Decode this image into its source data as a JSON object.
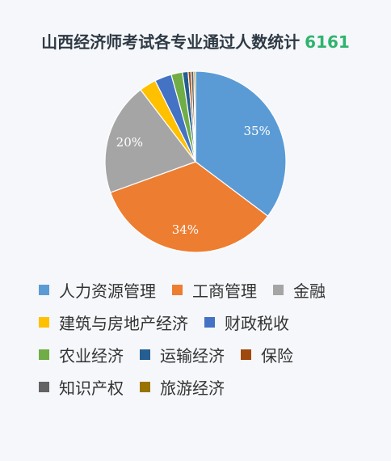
{
  "header": {
    "title": "山西经济师考试各专业通过人数统计",
    "total": "6161"
  },
  "chart_data": {
    "type": "pie",
    "title": "山西经济师考试各专业通过人数统计",
    "categories": [
      "人力资源管理",
      "工商管理",
      "金融",
      "建筑与房地产经济",
      "财政税收",
      "农业经济",
      "运输经济",
      "保险",
      "知识产权",
      "旅游经济"
    ],
    "values": [
      35,
      34,
      20,
      3,
      3,
      2,
      1,
      0.5,
      0.5,
      0.3
    ],
    "colors": [
      "#5b9bd5",
      "#ed7d31",
      "#a5a5a5",
      "#ffc000",
      "#4472c4",
      "#70ad47",
      "#255e91",
      "#9e480e",
      "#636363",
      "#997300"
    ],
    "data_labels": [
      "35%",
      "34%",
      "20%",
      "",
      "",
      "",
      "",
      "",
      "",
      ""
    ],
    "legend_position": "bottom"
  }
}
